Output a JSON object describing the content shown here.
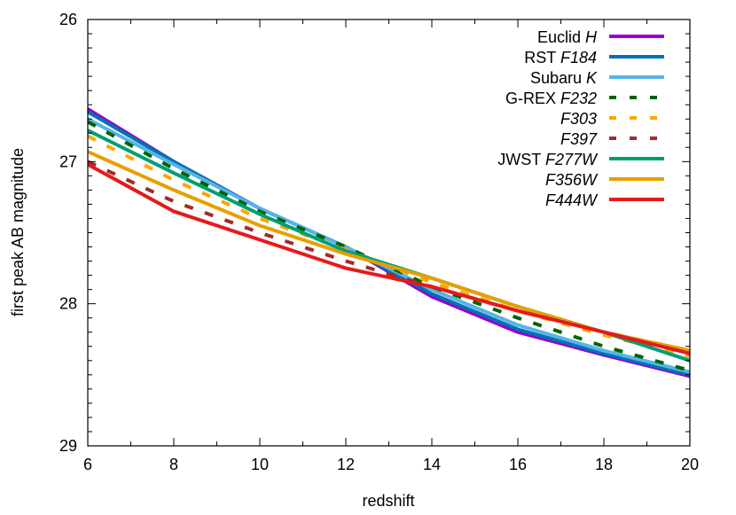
{
  "chart_data": {
    "type": "line",
    "xlabel": "redshift",
    "ylabel": "first peak AB magnitude",
    "xlim": [
      6,
      20
    ],
    "ylim": [
      29,
      26
    ],
    "y_inverted": true,
    "xticks": [
      6,
      8,
      10,
      12,
      14,
      16,
      18,
      20
    ],
    "yticks": [
      26,
      27,
      28,
      29
    ],
    "grid": false,
    "legend_placement": "top-right",
    "x": [
      6,
      8,
      10,
      12,
      14,
      16,
      18,
      20
    ],
    "series": [
      {
        "name": "Euclid",
        "name_italic": "H",
        "color": "#9400d3",
        "dash": false,
        "values": [
          26.63,
          27.0,
          27.33,
          27.6,
          27.95,
          28.2,
          28.36,
          28.51
        ]
      },
      {
        "name": "RST",
        "name_italic": "F184",
        "color": "#0072b2",
        "dash": false,
        "values": [
          26.65,
          27.0,
          27.33,
          27.6,
          27.93,
          28.18,
          28.35,
          28.5
        ]
      },
      {
        "name": "Subaru",
        "name_italic": "K",
        "color": "#56b4e9",
        "dash": false,
        "values": [
          26.7,
          27.02,
          27.33,
          27.6,
          27.9,
          28.15,
          28.33,
          28.48
        ]
      },
      {
        "name": "G-REX",
        "name_italic": "F232",
        "color": "#006400",
        "dash": true,
        "values": [
          26.72,
          27.05,
          27.35,
          27.6,
          27.88,
          28.1,
          28.3,
          28.47
        ]
      },
      {
        "name": "",
        "name_italic": "F303",
        "color": "#ffa500",
        "dash": true,
        "values": [
          26.82,
          27.13,
          27.4,
          27.62,
          27.85,
          28.05,
          28.22,
          28.37
        ]
      },
      {
        "name": "",
        "name_italic": "F397",
        "color": "#a52a2a",
        "dash": true,
        "values": [
          27.0,
          27.28,
          27.5,
          27.7,
          27.88,
          28.05,
          28.2,
          28.33
        ]
      },
      {
        "name": "JWST",
        "name_italic": "F277W",
        "color": "#009e73",
        "dash": false,
        "values": [
          26.78,
          27.08,
          27.37,
          27.63,
          27.82,
          28.02,
          28.2,
          28.4
        ]
      },
      {
        "name": "",
        "name_italic": "F356W",
        "color": "#e69f00",
        "dash": false,
        "values": [
          26.93,
          27.2,
          27.45,
          27.65,
          27.82,
          28.02,
          28.2,
          28.33
        ]
      },
      {
        "name": "",
        "name_italic": "F444W",
        "color": "#e41a1c",
        "dash": false,
        "values": [
          27.02,
          27.35,
          27.55,
          27.75,
          27.88,
          28.05,
          28.2,
          28.35
        ]
      }
    ]
  }
}
